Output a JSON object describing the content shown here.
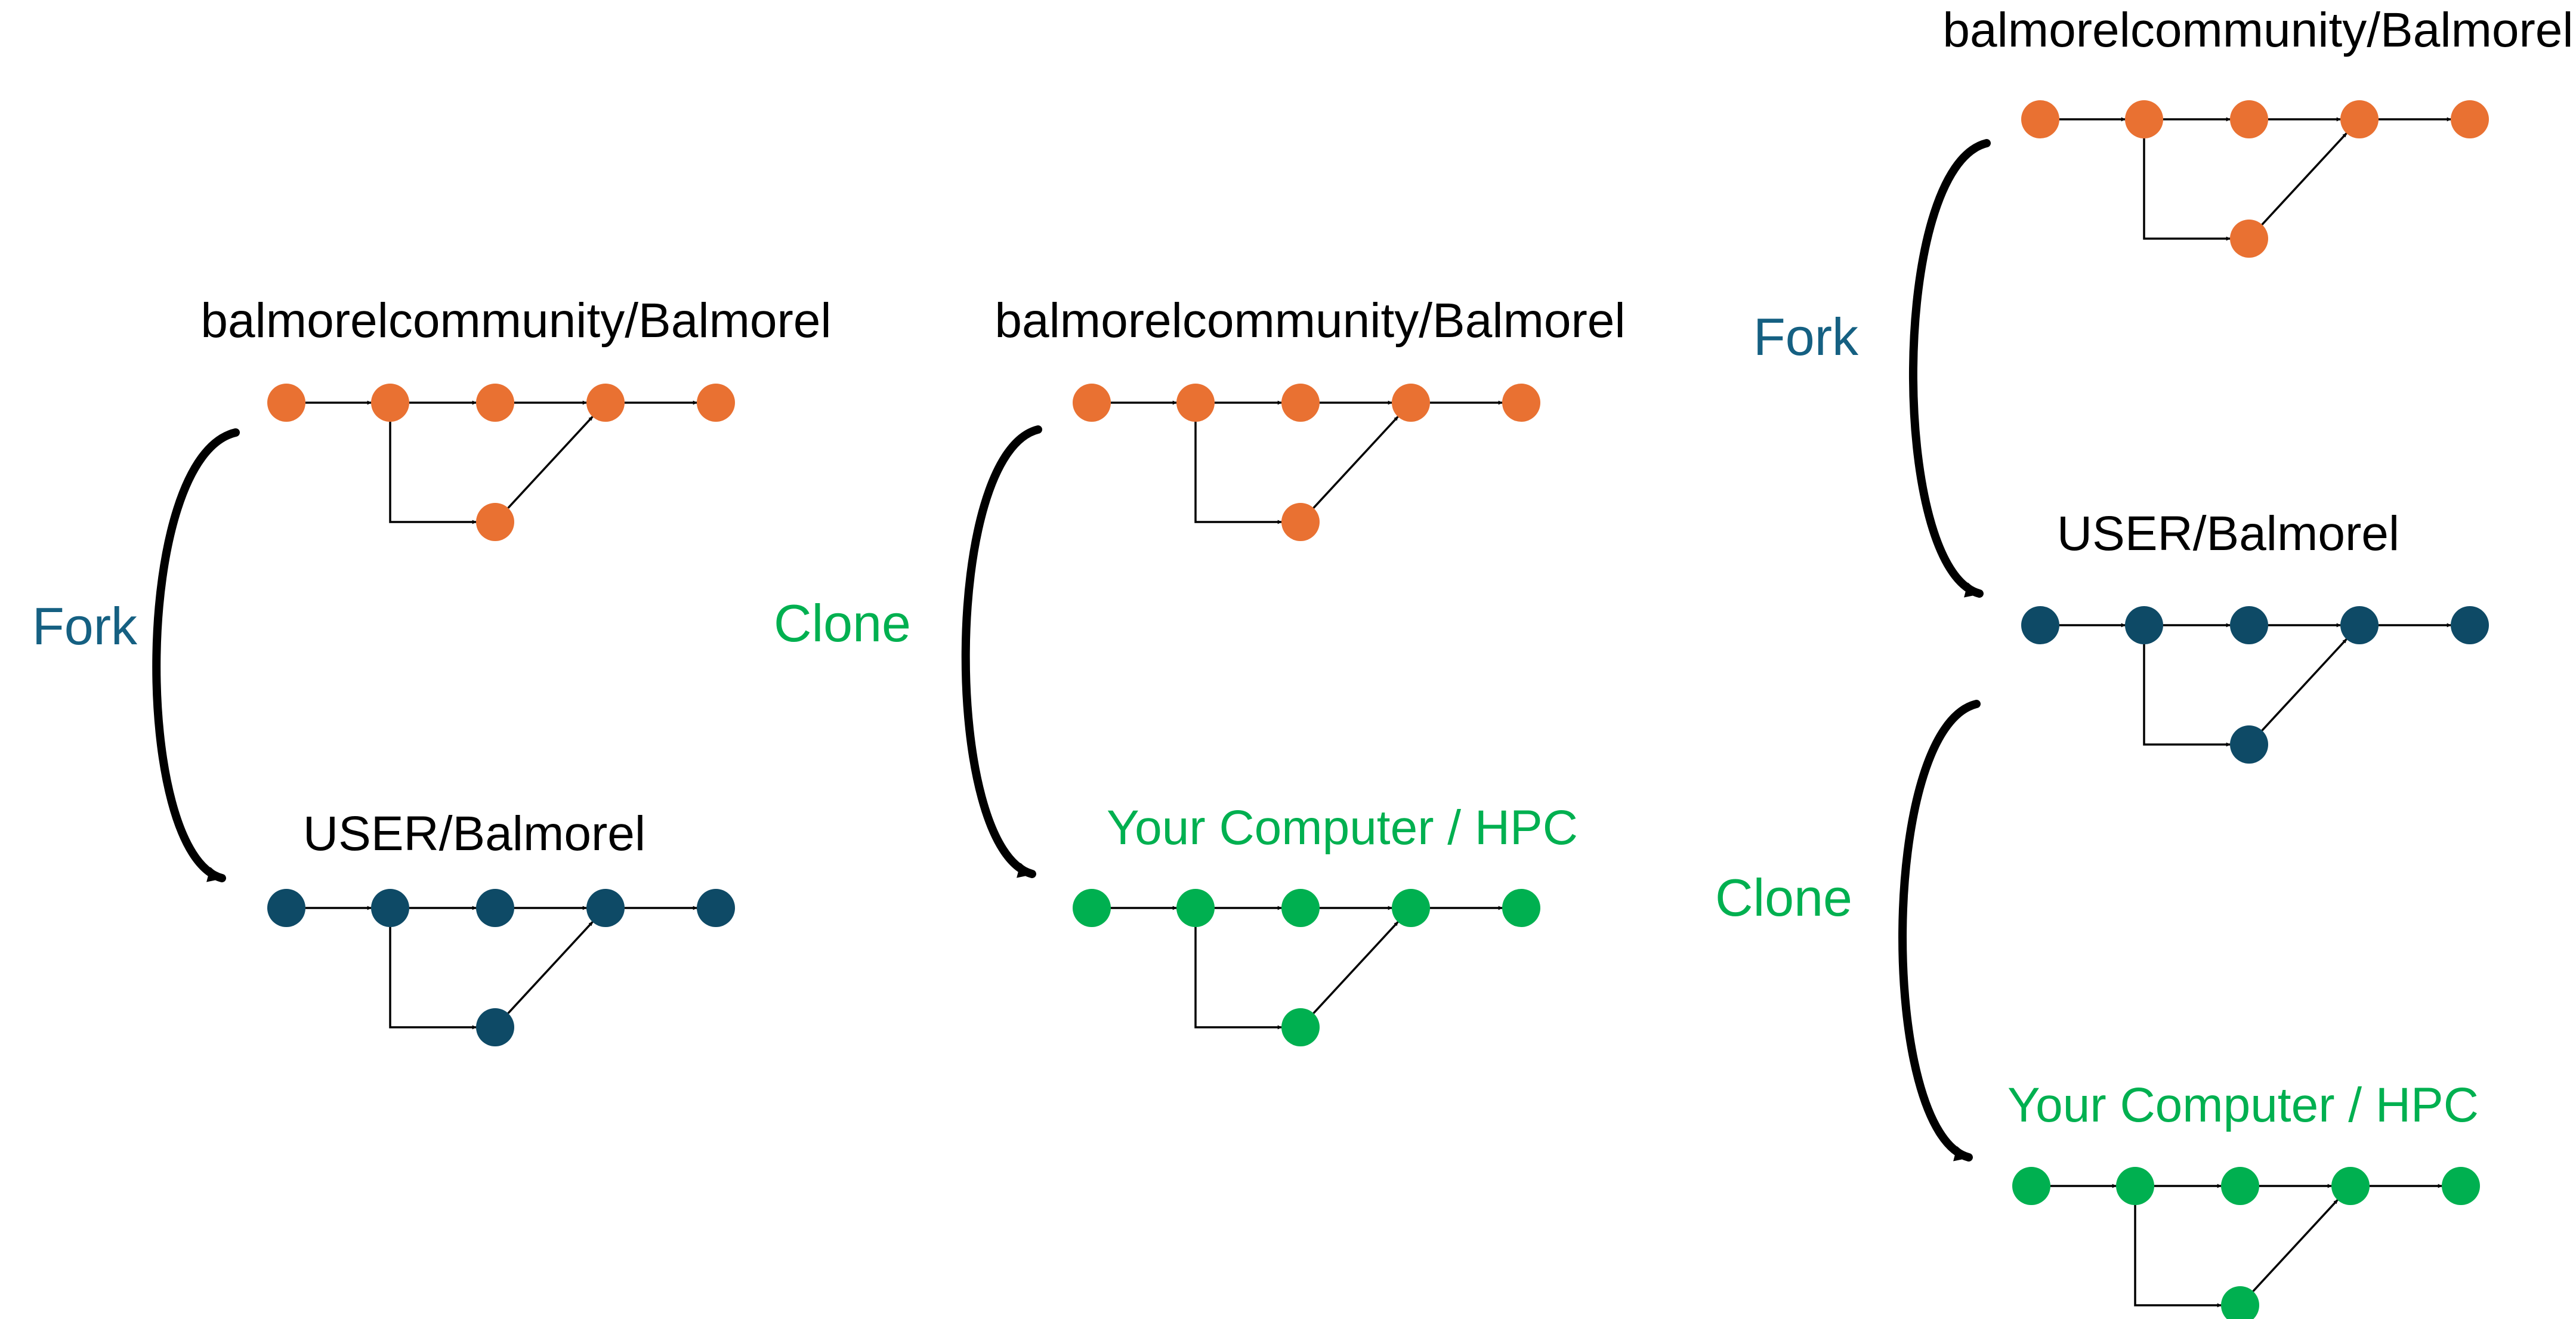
{
  "colors": {
    "origin": "#E97132",
    "fork": "#0E4A66",
    "local": "#00B050",
    "text": "#000000",
    "fork_label": "#156082",
    "clone_label": "#00B050"
  },
  "repos": {
    "origin": "balmorelcommunity/Balmorel",
    "fork": "USER/Balmorel",
    "local": "Your Computer / HPC"
  },
  "operations": {
    "fork": "Fork",
    "clone": "Clone"
  },
  "panels": [
    {
      "name": "fork-panel",
      "steps": [
        {
          "repo": "origin",
          "color": "origin",
          "label_color": "text"
        },
        {
          "op": "fork",
          "op_color": "fork_label"
        },
        {
          "repo": "fork",
          "color": "fork",
          "label_color": "text"
        }
      ]
    },
    {
      "name": "clone-panel",
      "steps": [
        {
          "repo": "origin",
          "color": "origin",
          "label_color": "text"
        },
        {
          "op": "clone",
          "op_color": "clone_label"
        },
        {
          "repo": "local",
          "color": "local",
          "label_color": "clone_label"
        }
      ]
    },
    {
      "name": "fork-then-clone-panel",
      "steps": [
        {
          "repo": "origin",
          "color": "origin",
          "label_color": "text"
        },
        {
          "op": "fork",
          "op_color": "fork_label"
        },
        {
          "repo": "fork",
          "color": "fork",
          "label_color": "text"
        },
        {
          "op": "clone",
          "op_color": "clone_label"
        },
        {
          "repo": "local",
          "color": "local",
          "label_color": "clone_label"
        }
      ]
    }
  ]
}
